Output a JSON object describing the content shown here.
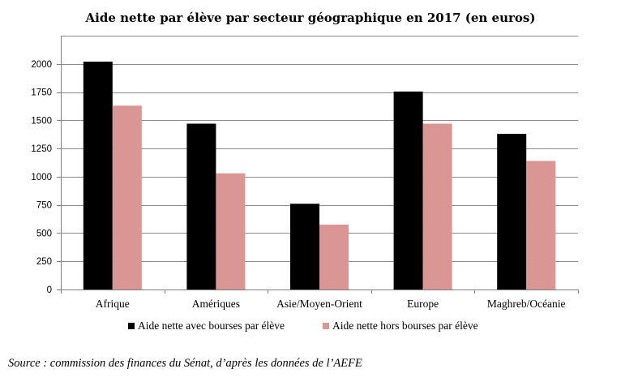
{
  "chart_data": {
    "type": "bar",
    "title": "Aide nette par élève par secteur géographique en 2017 (en euros)",
    "xlabel": "",
    "ylabel": "",
    "categories": [
      "Afrique",
      "Amériques",
      "Asie/Moyen-Orient",
      "Europe",
      "Maghreb/Océanie"
    ],
    "series": [
      {
        "name": "Aide nette avec bourses par élève",
        "values": [
          2020,
          1470,
          760,
          1755,
          1380
        ],
        "color": "#000000"
      },
      {
        "name": "Aide nette hors bourses par élève",
        "values": [
          1630,
          1030,
          575,
          1470,
          1140
        ],
        "color": "#d99694"
      }
    ],
    "ylim": [
      0,
      2250
    ],
    "yticks": [
      0,
      250,
      500,
      750,
      1000,
      1250,
      1500,
      1750,
      2000
    ],
    "grid": true,
    "legend_position": "bottom"
  },
  "source": "Source : commission des finances du Sénat, d’après les données de l’AEFE"
}
